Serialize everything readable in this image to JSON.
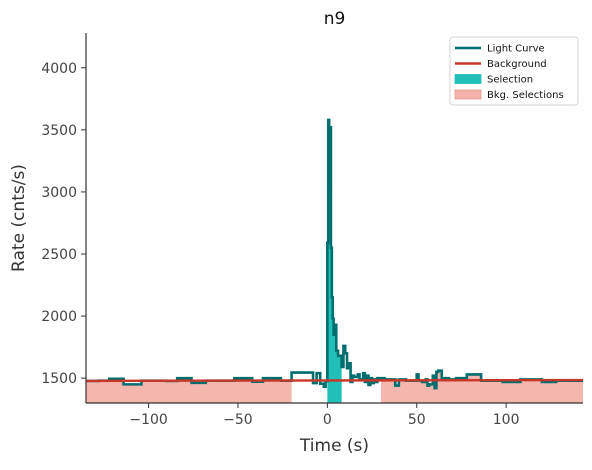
{
  "chart_data": {
    "type": "line",
    "title": "n9",
    "xlabel": "Time (s)",
    "ylabel": "Rate (cnts/s)",
    "xlim": [
      -135,
      143
    ],
    "ylim": [
      1300,
      4280
    ],
    "x_ticks": [
      -100,
      -50,
      0,
      50,
      100
    ],
    "y_ticks": [
      1500,
      2000,
      2500,
      3000,
      3500,
      4000
    ],
    "x_tick_labels": [
      "−100",
      "−50",
      "0",
      "50",
      "100"
    ],
    "y_tick_labels": [
      "1500",
      "2000",
      "2500",
      "3000",
      "3500",
      "4000"
    ],
    "grid": false,
    "legend_position": "top-right",
    "colors": {
      "light_curve": "#006d6f",
      "background": "#c8382a",
      "selection": "#20c0b8",
      "bkg_selection": "#f4b2aa"
    },
    "series": [
      {
        "name": "Light Curve",
        "style": "step",
        "points": [
          [
            -135,
            1478
          ],
          [
            -128,
            1480
          ],
          [
            -122,
            1495
          ],
          [
            -114,
            1450
          ],
          [
            -104,
            1480
          ],
          [
            -90,
            1478
          ],
          [
            -84,
            1500
          ],
          [
            -76,
            1462
          ],
          [
            -68,
            1480
          ],
          [
            -56,
            1480
          ],
          [
            -52,
            1500
          ],
          [
            -42,
            1472
          ],
          [
            -36,
            1500
          ],
          [
            -26,
            1480
          ],
          [
            -20,
            1545
          ],
          [
            -8,
            1460
          ],
          [
            -6,
            1540
          ],
          [
            -4,
            1455
          ],
          [
            -2,
            1430
          ],
          [
            -1,
            1475
          ],
          [
            0,
            2590
          ],
          [
            0.5,
            3580
          ],
          [
            1,
            3030
          ],
          [
            1.5,
            3520
          ],
          [
            2,
            2550
          ],
          [
            2.5,
            2150
          ],
          [
            3,
            1980
          ],
          [
            3.5,
            1850
          ],
          [
            4,
            1930
          ],
          [
            5,
            1720
          ],
          [
            6,
            1680
          ],
          [
            7,
            1680
          ],
          [
            8,
            1590
          ],
          [
            9,
            1760
          ],
          [
            10,
            1700
          ],
          [
            11,
            1580
          ],
          [
            12,
            1620
          ],
          [
            13,
            1470
          ],
          [
            14,
            1520
          ],
          [
            15,
            1510
          ],
          [
            17,
            1530
          ],
          [
            18,
            1490
          ],
          [
            20,
            1540
          ],
          [
            21,
            1470
          ],
          [
            22,
            1520
          ],
          [
            23,
            1445
          ],
          [
            24,
            1500
          ],
          [
            25,
            1460
          ],
          [
            26,
            1490
          ],
          [
            27,
            1470
          ],
          [
            28,
            1500
          ],
          [
            32,
            1490
          ],
          [
            38,
            1440
          ],
          [
            40,
            1490
          ],
          [
            44,
            1480
          ],
          [
            50,
            1530
          ],
          [
            51,
            1480
          ],
          [
            53,
            1470
          ],
          [
            55,
            1490
          ],
          [
            56,
            1440
          ],
          [
            57,
            1450
          ],
          [
            59,
            1520
          ],
          [
            60,
            1420
          ],
          [
            61,
            1550
          ],
          [
            62,
            1560
          ],
          [
            64,
            1500
          ],
          [
            68,
            1490
          ],
          [
            72,
            1500
          ],
          [
            78,
            1530
          ],
          [
            86,
            1480
          ],
          [
            98,
            1470
          ],
          [
            108,
            1490
          ],
          [
            120,
            1470
          ],
          [
            128,
            1480
          ],
          [
            143,
            1480
          ]
        ]
      },
      {
        "name": "Background",
        "style": "line",
        "points": [
          [
            -135,
            1478
          ],
          [
            143,
            1485
          ]
        ]
      }
    ],
    "fills": [
      {
        "name": "Selection",
        "points": [
          [
            0,
            2590
          ],
          [
            0.5,
            3580
          ],
          [
            1,
            3030
          ],
          [
            1.5,
            3520
          ],
          [
            2,
            2550
          ],
          [
            2.5,
            2150
          ],
          [
            3,
            1980
          ],
          [
            3.5,
            1850
          ],
          [
            4,
            1930
          ],
          [
            5,
            1720
          ],
          [
            6,
            1680
          ],
          [
            7,
            1680
          ]
        ]
      },
      {
        "name": "Bkg. Selections",
        "ranges": [
          [
            -135,
            -20
          ],
          [
            30,
            143
          ]
        ]
      }
    ],
    "legend": [
      "Light Curve",
      "Background",
      "Selection",
      "Bkg. Selections"
    ]
  }
}
